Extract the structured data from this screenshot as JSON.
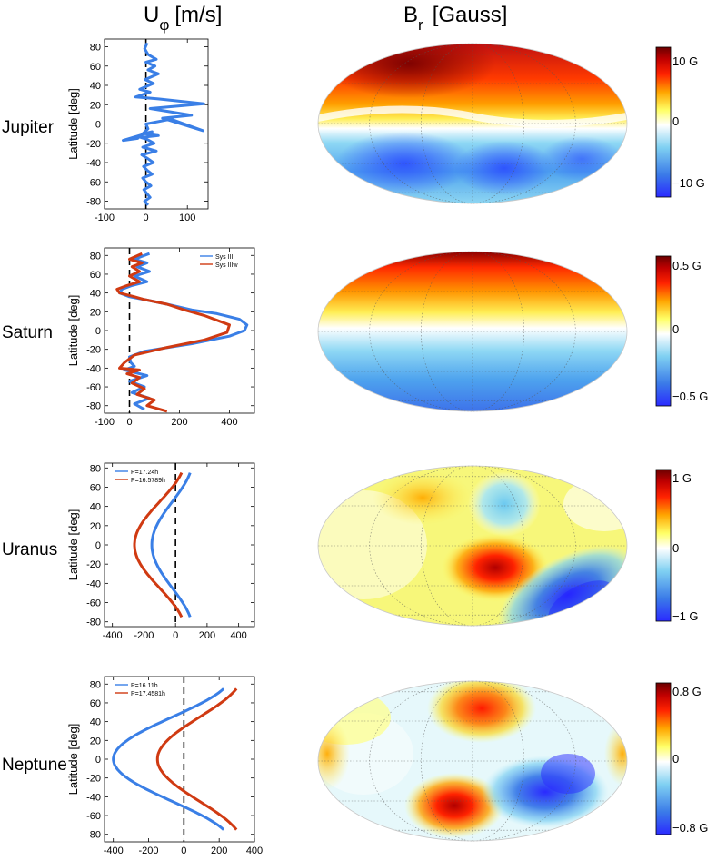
{
  "headers": {
    "left": {
      "base": "U",
      "sub": "φ",
      "unit": "[m/s]"
    },
    "right": {
      "base": "B",
      "sub": "r",
      "unit": "[Gauss]"
    }
  },
  "colors": {
    "blue": "#3a7fe6",
    "red": "#d03a12",
    "colormap": [
      "#2a2aff",
      "#3b7be8",
      "#7fd0f2",
      "#ffffff",
      "#ffff66",
      "#ffa500",
      "#ff2200",
      "#c00000",
      "#6b0000"
    ]
  },
  "chart_data": [
    {
      "planet": "Jupiter",
      "type": "line",
      "ylabel": "Latitude [deg]",
      "xlim": [
        -100,
        150
      ],
      "ylim": [
        -88,
        88
      ],
      "xticks": [
        -100,
        0,
        100
      ],
      "yticks": [
        -80,
        -60,
        -40,
        -20,
        0,
        20,
        40,
        60,
        80
      ],
      "series": [
        {
          "name": "",
          "color": "#3a7fe6",
          "x": [
            5,
            -3,
            10,
            2,
            -5,
            12,
            0,
            -8,
            15,
            3,
            -6,
            18,
            5,
            -10,
            25,
            -8,
            20,
            3,
            -12,
            30,
            -5,
            15,
            -55,
            -20,
            5,
            0,
            60,
            138,
            40,
            110,
            10,
            140,
            30,
            -25,
            10,
            -15,
            18,
            -2,
            30,
            5,
            22,
            0,
            25,
            5,
            -3,
            3
          ],
          "y": [
            -84,
            -80,
            -76,
            -72,
            -68,
            -64,
            -60,
            -56,
            -52,
            -48,
            -44,
            -40,
            -36,
            -32,
            -28,
            -24,
            -20,
            -16,
            -14,
            -12,
            -10,
            -8,
            -17,
            -15,
            -5,
            0,
            5,
            -7,
            6,
            9,
            16,
            21,
            26,
            28,
            33,
            36,
            42,
            46,
            52,
            56,
            60,
            64,
            67,
            72,
            78,
            84
          ]
        }
      ],
      "map": {
        "colorbar_labels": [
          "10 G",
          "0",
          "−10 G"
        ],
        "range": [
          -12,
          12
        ]
      }
    },
    {
      "planet": "Saturn",
      "type": "line",
      "ylabel": "Latitude [deg]",
      "xlim": [
        -100,
        500
      ],
      "ylim": [
        -88,
        88
      ],
      "xticks": [
        -100,
        0,
        200,
        400
      ],
      "yticks": [
        -80,
        -60,
        -40,
        -20,
        0,
        20,
        40,
        60,
        80
      ],
      "legend": {
        "entries": [
          "Sys III",
          "Sys IIIw"
        ],
        "placement": "top-right"
      },
      "series": [
        {
          "name": "Sys III",
          "color": "#3a7fe6",
          "x": [
            60,
            20,
            80,
            10,
            60,
            0,
            70,
            -20,
            20,
            5,
            0,
            60,
            250,
            400,
            460,
            470,
            440,
            350,
            250,
            150,
            60,
            0,
            -40,
            -30,
            10,
            70,
            20,
            80,
            30,
            70,
            20,
            80
          ],
          "y": [
            -84,
            -78,
            -72,
            -66,
            -60,
            -54,
            -48,
            -42,
            -38,
            -34,
            -28,
            -22,
            -14,
            -6,
            0,
            6,
            12,
            18,
            22,
            28,
            33,
            36,
            40,
            44,
            48,
            52,
            58,
            63,
            68,
            72,
            76,
            82
          ]
        },
        {
          "name": "Sys IIIw",
          "color": "#d03a12",
          "x": [
            150,
            70,
            100,
            30,
            60,
            10,
            40,
            -10,
            40,
            -40,
            -20,
            20,
            150,
            300,
            390,
            400,
            360,
            300,
            220,
            150,
            60,
            20,
            -40,
            -50,
            -10,
            40,
            0,
            40,
            10,
            50,
            0,
            50
          ],
          "y": [
            -86,
            -80,
            -74,
            -68,
            -62,
            -56,
            -50,
            -46,
            -42,
            -40,
            -34,
            -26,
            -18,
            -10,
            -2,
            6,
            10,
            16,
            22,
            28,
            33,
            36,
            40,
            44,
            48,
            52,
            58,
            63,
            68,
            72,
            76,
            82
          ]
        }
      ],
      "map": {
        "colorbar_labels": [
          "0.5 G",
          "0",
          "−0.5 G"
        ],
        "range": [
          -0.6,
          0.6
        ]
      }
    },
    {
      "planet": "Uranus",
      "type": "line",
      "ylabel": "Latitude [deg]",
      "xlim": [
        -450,
        500
      ],
      "ylim": [
        -85,
        85
      ],
      "xticks": [
        -400,
        -200,
        0,
        200,
        400
      ],
      "yticks": [
        -80,
        -60,
        -40,
        -20,
        0,
        20,
        40,
        60,
        80
      ],
      "legend": {
        "entries": [
          "P=17.24h",
          "P=16.5789h"
        ],
        "placement": "top-left"
      },
      "series": [
        {
          "name": "P=17.24h",
          "color": "#3a7fe6",
          "a": 110,
          "b": -150
        },
        {
          "name": "P=16.5789h",
          "color": "#d03a12",
          "a": 60,
          "b": -260
        }
      ],
      "map": {
        "colorbar_labels": [
          "1 G",
          "0",
          "−1 G"
        ],
        "range": [
          -1.2,
          1.2
        ]
      }
    },
    {
      "planet": "Neptune",
      "type": "line",
      "ylabel": "Latitude [deg]",
      "xlim": [
        -450,
        400
      ],
      "ylim": [
        -88,
        88
      ],
      "xticks": [
        -400,
        -200,
        0,
        200,
        400
      ],
      "yticks": [
        -80,
        -60,
        -40,
        -20,
        0,
        20,
        40,
        60,
        80
      ],
      "legend": {
        "entries": [
          "P=16.11h",
          "P=17.4581h"
        ],
        "placement": "top-left"
      },
      "series": [
        {
          "name": "P=16.11h",
          "color": "#3a7fe6",
          "a": 270,
          "b": -400
        },
        {
          "name": "P=17.4581h",
          "color": "#d03a12",
          "a": 330,
          "b": -150
        }
      ],
      "map": {
        "colorbar_labels": [
          "0.8 G",
          "0",
          "−0.8 G"
        ],
        "range": [
          -1,
          1
        ]
      }
    }
  ]
}
